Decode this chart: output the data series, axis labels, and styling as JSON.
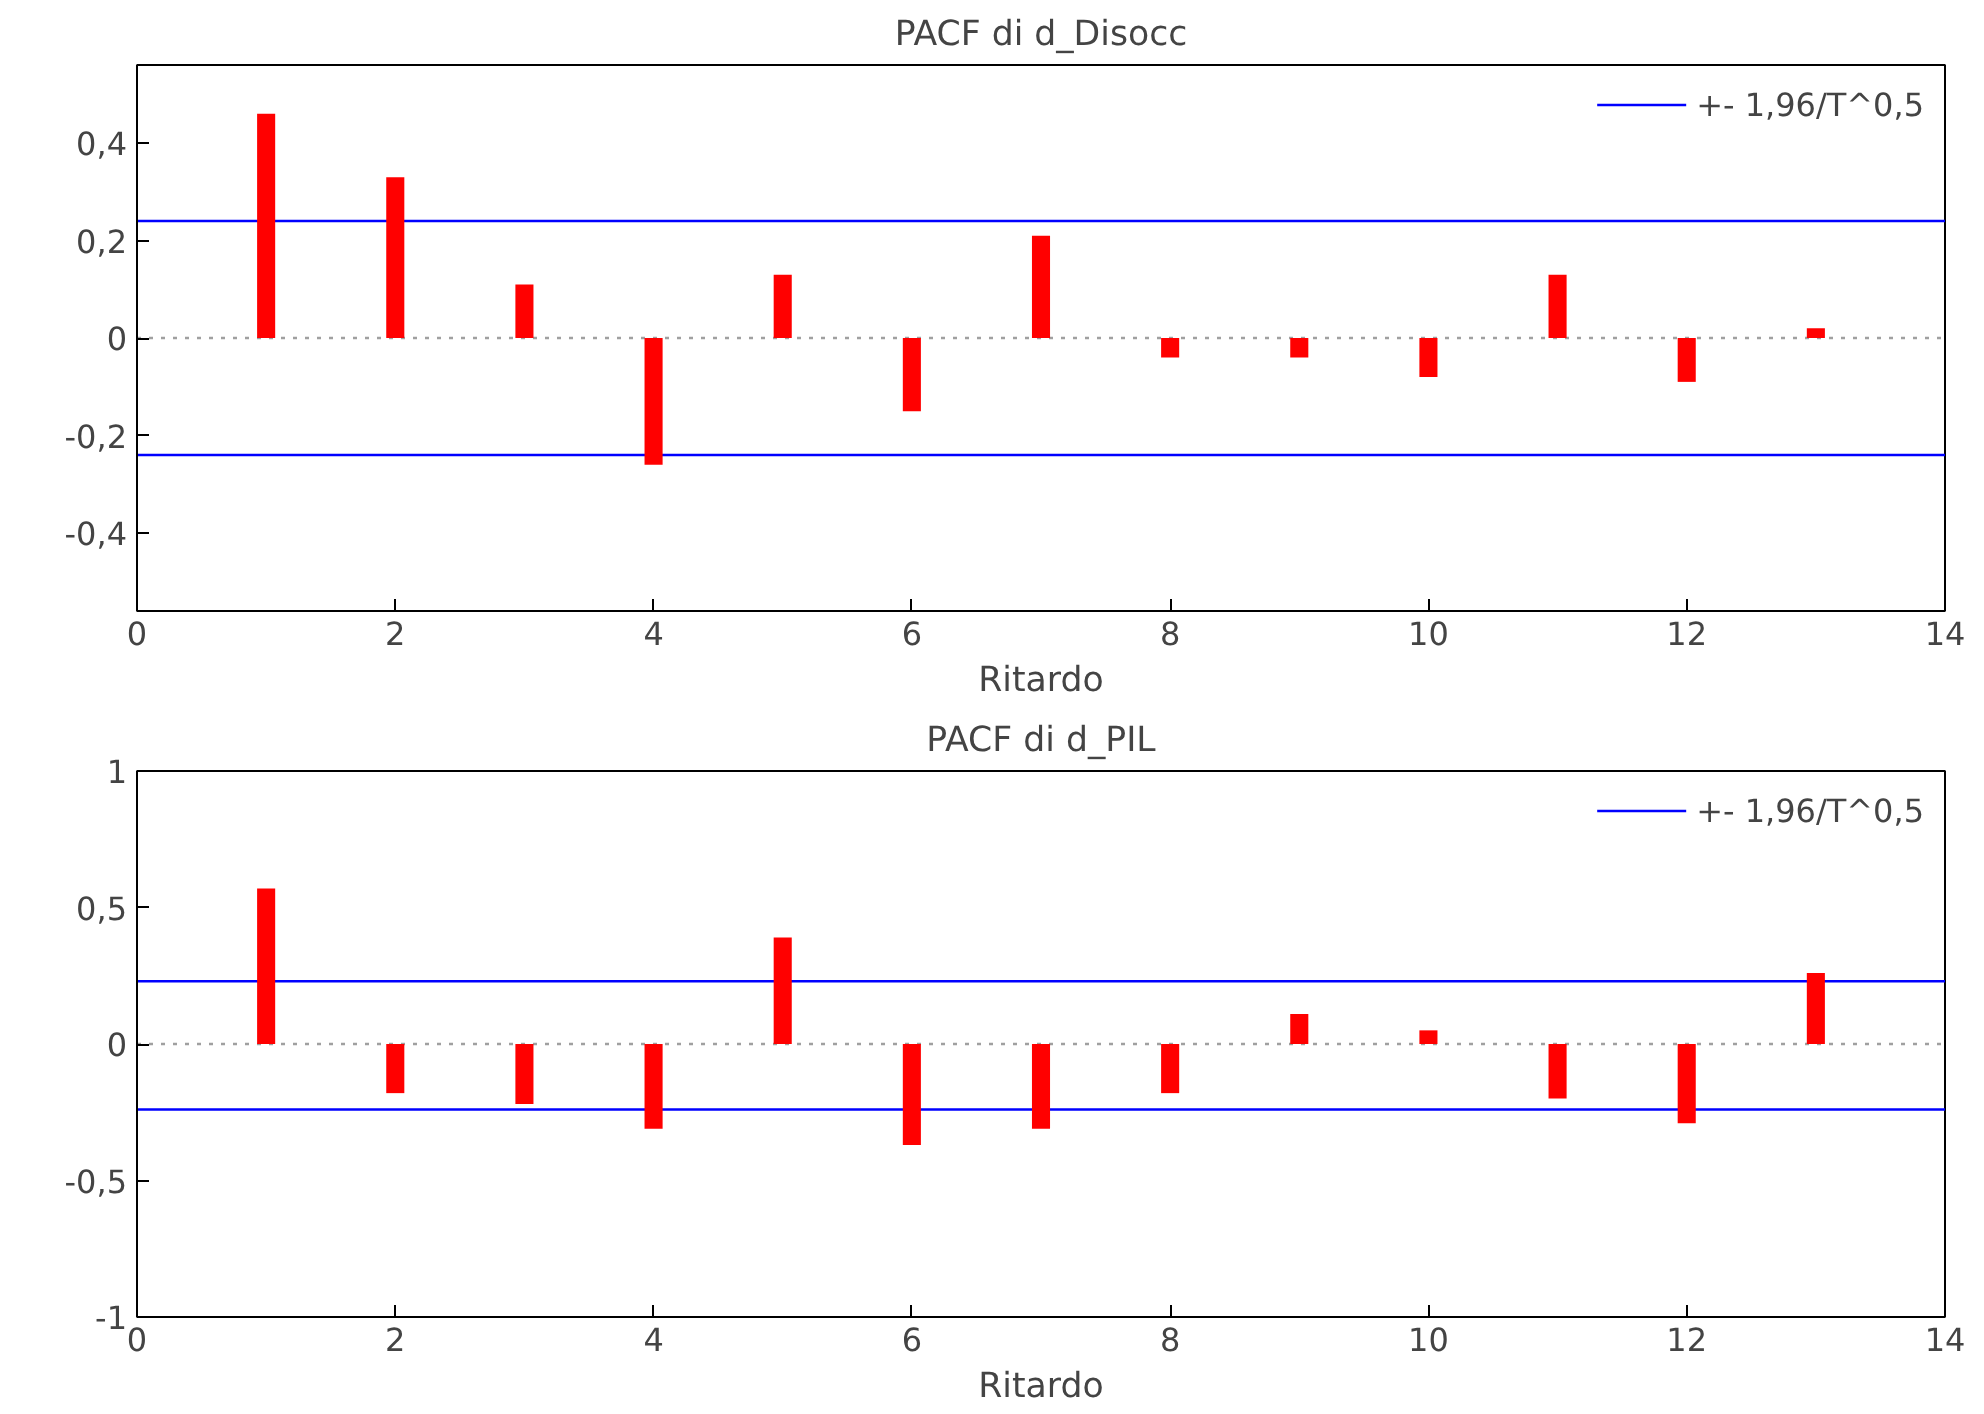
{
  "chart_data": [
    {
      "type": "bar",
      "title": "PACF di d_Disocc",
      "xlabel": "Ritardo",
      "x": [
        1,
        2,
        3,
        4,
        5,
        6,
        7,
        8,
        9,
        10,
        11,
        12,
        13
      ],
      "series": [
        {
          "color": "#ff0000",
          "values": [
            0.46,
            0.33,
            0.11,
            -0.26,
            0.13,
            -0.15,
            0.21,
            -0.04,
            -0.04,
            -0.08,
            0.13,
            -0.09,
            0.02
          ]
        }
      ],
      "xlim": [
        0,
        14
      ],
      "xticks": [
        0,
        2,
        4,
        6,
        8,
        10,
        12,
        14
      ],
      "ylim": [
        -0.56,
        0.56
      ],
      "yticks": [
        {
          "value": -0.4,
          "label": "-0,4"
        },
        {
          "value": -0.2,
          "label": "-0,2"
        },
        0,
        {
          "value": 0.2,
          "label": "0,2"
        },
        {
          "value": 0.4,
          "label": "0,4"
        }
      ],
      "ref_lines": [
        {
          "axis": "y",
          "value": 0.24,
          "label": "+- 1,96/T^0,5",
          "color": "#0000ff"
        },
        {
          "axis": "y",
          "value": -0.24,
          "color": "#0000ff"
        },
        {
          "axis": "y",
          "value": 0,
          "color": "#a0a0a0",
          "line_style": "dotted"
        }
      ],
      "grid": false,
      "legend": "top right"
    },
    {
      "type": "bar",
      "title": "PACF di d_PIL",
      "xlabel": "Ritardo",
      "x": [
        1,
        2,
        3,
        4,
        5,
        6,
        7,
        8,
        9,
        10,
        11,
        12,
        13
      ],
      "series": [
        {
          "color": "#ff0000",
          "values": [
            0.57,
            -0.18,
            -0.22,
            -0.31,
            0.39,
            -0.37,
            -0.31,
            -0.18,
            0.11,
            0.05,
            -0.2,
            -0.29,
            0.26
          ]
        }
      ],
      "xlim": [
        0,
        14
      ],
      "xticks": [
        0,
        2,
        4,
        6,
        8,
        10,
        12,
        14
      ],
      "ylim": [
        -1,
        1
      ],
      "yticks": [
        -1,
        {
          "value": -0.5,
          "label": "-0,5"
        },
        0,
        {
          "value": 0.5,
          "label": "0,5"
        },
        1
      ],
      "ref_lines": [
        {
          "axis": "y",
          "value": 0.23,
          "label": "+- 1,96/T^0,5",
          "color": "#0000ff"
        },
        {
          "axis": "y",
          "value": -0.24,
          "color": "#0000ff"
        },
        {
          "axis": "y",
          "value": 0,
          "color": "#a0a0a0",
          "line_style": "dotted"
        }
      ],
      "grid": false,
      "legend": "top right"
    }
  ]
}
